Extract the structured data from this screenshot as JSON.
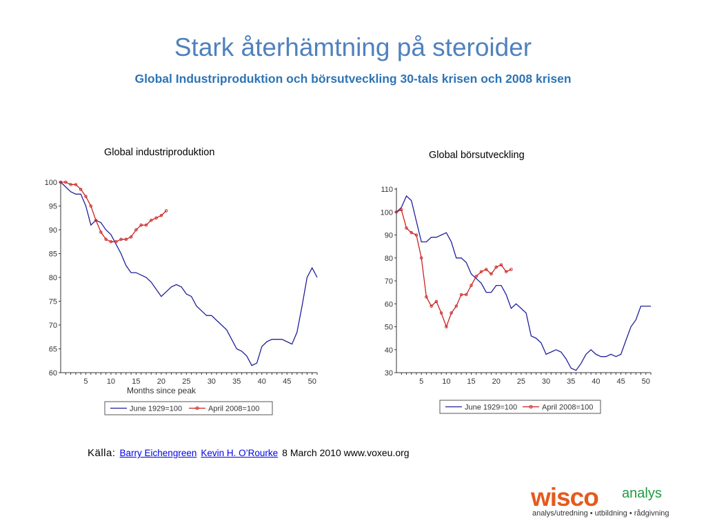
{
  "slide": {
    "title": "Stark återhämtning på steroider",
    "subtitle": "Global Industriproduktion och börsutveckling 30-tals krisen och 2008 krisen"
  },
  "chart_data": [
    {
      "type": "line",
      "title": "Global industriproduktion",
      "xlabel": "Months since peak",
      "ylabel": "",
      "xlim": [
        0,
        51
      ],
      "ylim": [
        60,
        100
      ],
      "xticks": [
        5,
        10,
        15,
        20,
        25,
        30,
        35,
        40,
        45,
        50
      ],
      "yticks": [
        60,
        65,
        70,
        75,
        80,
        85,
        90,
        95,
        100
      ],
      "grid": false,
      "legend": "bottom",
      "series": [
        {
          "name": "June 1929=100",
          "color": "#1f1f9c",
          "x": [
            0,
            1,
            2,
            3,
            4,
            5,
            6,
            7,
            8,
            9,
            10,
            11,
            12,
            13,
            14,
            15,
            16,
            17,
            18,
            19,
            20,
            21,
            22,
            23,
            24,
            25,
            26,
            27,
            28,
            29,
            30,
            31,
            32,
            33,
            34,
            35,
            36,
            37,
            38,
            39,
            40,
            41,
            42,
            43,
            44,
            45,
            46,
            47,
            48,
            49,
            50,
            51
          ],
          "y": [
            100,
            99,
            98,
            97.5,
            97.5,
            95,
            91,
            92,
            91.5,
            90,
            89,
            87,
            85,
            82.5,
            81,
            81,
            80.5,
            80,
            79,
            77.5,
            76,
            77,
            78,
            78.5,
            78,
            76.5,
            76,
            74,
            73,
            72,
            72,
            71,
            70,
            69,
            67,
            65,
            64.5,
            63.5,
            61.5,
            62,
            65.5,
            66.5,
            67,
            67,
            67,
            66.5,
            66,
            68.5,
            74,
            80,
            82,
            80
          ]
        },
        {
          "name": "April 2008=100",
          "color": "#cc1f1f",
          "x": [
            0,
            1,
            2,
            3,
            4,
            5,
            6,
            7,
            8,
            9,
            10,
            11,
            12,
            13,
            14,
            15,
            16,
            17,
            18,
            19,
            20,
            21
          ],
          "y": [
            100,
            100,
            99.5,
            99.5,
            98.5,
            97,
            95,
            92,
            89.5,
            88,
            87.5,
            87.5,
            88,
            88,
            88.5,
            90,
            91,
            91,
            92,
            92.5,
            93,
            94
          ]
        }
      ]
    },
    {
      "type": "line",
      "title": "Global börsutveckling",
      "xlabel": "",
      "ylabel": "",
      "xlim": [
        0,
        51
      ],
      "ylim": [
        30,
        110
      ],
      "xticks": [
        5,
        10,
        15,
        20,
        25,
        30,
        35,
        40,
        45,
        50
      ],
      "yticks": [
        30,
        40,
        50,
        60,
        70,
        80,
        90,
        100,
        110
      ],
      "grid": false,
      "legend": "bottom",
      "series": [
        {
          "name": "June 1929=100",
          "color": "#1f1f9c",
          "x": [
            0,
            1,
            2,
            3,
            4,
            5,
            6,
            7,
            8,
            9,
            10,
            11,
            12,
            13,
            14,
            15,
            16,
            17,
            18,
            19,
            20,
            21,
            22,
            23,
            24,
            25,
            26,
            27,
            28,
            29,
            30,
            31,
            32,
            33,
            34,
            35,
            36,
            37,
            38,
            39,
            40,
            41,
            42,
            43,
            44,
            45,
            46,
            47,
            48,
            49,
            50,
            51
          ],
          "y": [
            100,
            102,
            107,
            105,
            96,
            87,
            87,
            89,
            89,
            90,
            91,
            87,
            80,
            80,
            78,
            73,
            71,
            69,
            65,
            65,
            68,
            68,
            64,
            58,
            60,
            58,
            56,
            46,
            45,
            43,
            38,
            39,
            40,
            39,
            36,
            32,
            31,
            34,
            38,
            40,
            38,
            37,
            37,
            38,
            37,
            38,
            44,
            50,
            53,
            59,
            59,
            59
          ]
        },
        {
          "name": "April 2008=100",
          "color": "#cc1f1f",
          "x": [
            0,
            1,
            2,
            3,
            4,
            5,
            6,
            7,
            8,
            9,
            10,
            11,
            12,
            13,
            14,
            15,
            16,
            17,
            18,
            19,
            20,
            21,
            22,
            23
          ],
          "y": [
            100,
            101,
            93,
            91,
            90,
            80,
            63,
            59,
            61,
            56,
            50,
            56,
            59,
            64,
            64,
            68,
            72,
            74,
            75,
            73,
            76,
            77,
            74,
            75
          ]
        }
      ]
    }
  ],
  "source": {
    "prefix": "Källa:",
    "link1": "Barry Eichengreen",
    "link2": "Kevin H. O’Rourke",
    "suffix": "8 March 2010 www.voxeu.org"
  },
  "logo": {
    "brand": "wisco",
    "suffix": "analys",
    "tagline": "analys/utredning • utbildning • rådgivning",
    "brand_color": "#e55a1c",
    "suffix_color": "#1c9b3e"
  }
}
